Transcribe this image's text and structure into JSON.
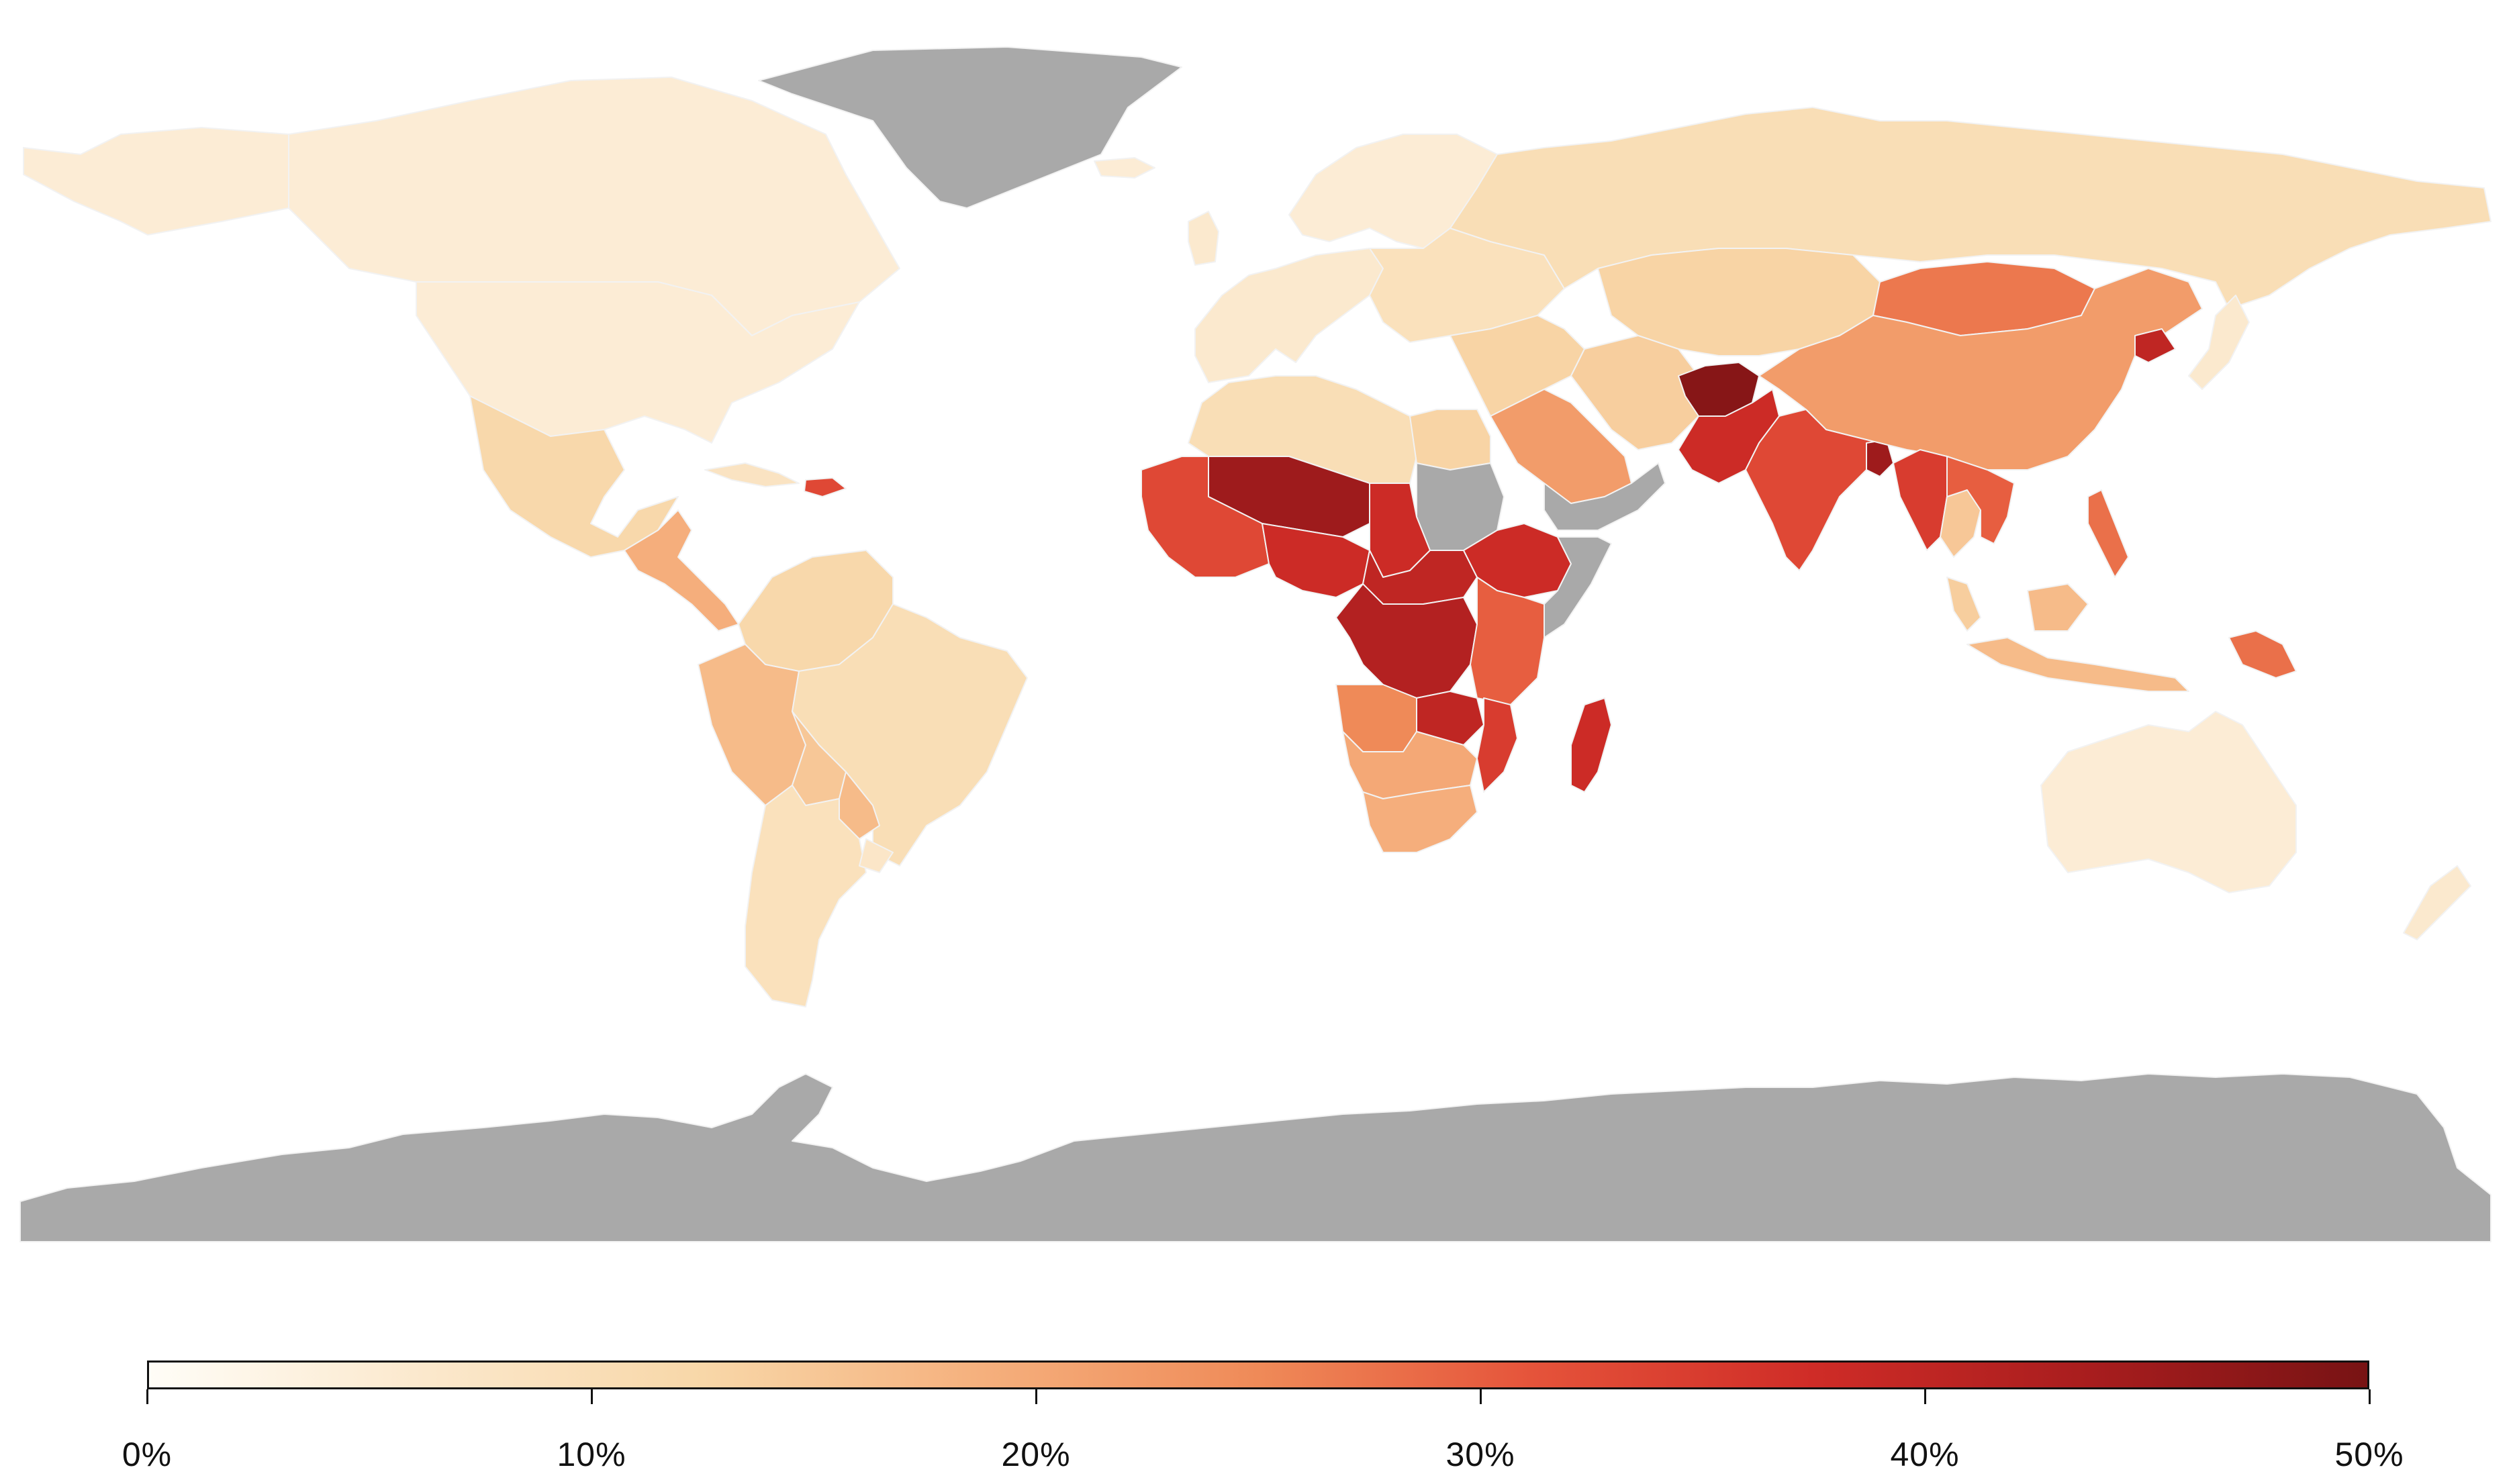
{
  "map": {
    "no_data_color": "#a9a9a9",
    "palette": [
      "#fffdf7",
      "#fbe8cc",
      "#f8d7a8",
      "#f5b07d",
      "#ef8a58",
      "#e5533a",
      "#cf2c27",
      "#a81d1e",
      "#781314"
    ],
    "regions": [
      {
        "id": "greenland",
        "value": null
      },
      {
        "id": "antarctica",
        "value": null
      },
      {
        "id": "canada",
        "value": 5
      },
      {
        "id": "usa",
        "value": 5
      },
      {
        "id": "alaska",
        "value": 5
      },
      {
        "id": "mexico",
        "value": 12
      },
      {
        "id": "central-america",
        "value": 19
      },
      {
        "id": "haiti",
        "value": 33
      },
      {
        "id": "cuba",
        "value": 8
      },
      {
        "id": "colombia-venezuela",
        "value": 12
      },
      {
        "id": "peru",
        "value": 17
      },
      {
        "id": "brazil",
        "value": 10
      },
      {
        "id": "bolivia",
        "value": 15
      },
      {
        "id": "paraguay",
        "value": 17
      },
      {
        "id": "argentina-chile",
        "value": 9
      },
      {
        "id": "uruguay",
        "value": 7
      },
      {
        "id": "western-europe",
        "value": 6
      },
      {
        "id": "scandinavia",
        "value": 5
      },
      {
        "id": "uk",
        "value": 6
      },
      {
        "id": "iceland",
        "value": 5
      },
      {
        "id": "eastern-europe",
        "value": 9
      },
      {
        "id": "russia",
        "value": 10
      },
      {
        "id": "kazakhstan-central-asia",
        "value": 13
      },
      {
        "id": "turkey-middle-east",
        "value": 13
      },
      {
        "id": "iran",
        "value": 14
      },
      {
        "id": "saudi-arabia",
        "value": 22
      },
      {
        "id": "yemen-oman",
        "value": null
      },
      {
        "id": "afghanistan",
        "value": 48
      },
      {
        "id": "pakistan",
        "value": 38
      },
      {
        "id": "india",
        "value": 33
      },
      {
        "id": "bangladesh",
        "value": 45
      },
      {
        "id": "china",
        "value": 22
      },
      {
        "id": "mongolia",
        "value": 27
      },
      {
        "id": "korea-north",
        "value": 40
      },
      {
        "id": "japan",
        "value": 6
      },
      {
        "id": "myanmar",
        "value": 35
      },
      {
        "id": "thailand",
        "value": 15
      },
      {
        "id": "vietnam-laos",
        "value": 30
      },
      {
        "id": "malaysia",
        "value": 14
      },
      {
        "id": "indonesia",
        "value": 17
      },
      {
        "id": "philippines",
        "value": 28
      },
      {
        "id": "papua-new-guinea",
        "value": 28
      },
      {
        "id": "australia",
        "value": 5
      },
      {
        "id": "new-zealand",
        "value": 6
      },
      {
        "id": "north-africa",
        "value": 10
      },
      {
        "id": "egypt",
        "value": 13
      },
      {
        "id": "sudan",
        "value": null
      },
      {
        "id": "west-africa",
        "value": 33
      },
      {
        "id": "sahel-niger",
        "value": 45
      },
      {
        "id": "chad",
        "value": 38
      },
      {
        "id": "nigeria",
        "value": 38
      },
      {
        "id": "central-african-rep",
        "value": 40
      },
      {
        "id": "drc",
        "value": 42
      },
      {
        "id": "ethiopia",
        "value": 38
      },
      {
        "id": "somalia",
        "value": null
      },
      {
        "id": "kenya-tanzania",
        "value": 30
      },
      {
        "id": "angola",
        "value": 25
      },
      {
        "id": "zambia",
        "value": 40
      },
      {
        "id": "mozambique",
        "value": 35
      },
      {
        "id": "namibia-botswana",
        "value": 20
      },
      {
        "id": "south-africa",
        "value": 19
      },
      {
        "id": "madagascar",
        "value": 38
      }
    ]
  },
  "legend": {
    "min": 0,
    "max": 50,
    "ticks": [
      {
        "value": 0,
        "label": "0%"
      },
      {
        "value": 10,
        "label": "10%"
      },
      {
        "value": 20,
        "label": "20%"
      },
      {
        "value": 30,
        "label": "30%"
      },
      {
        "value": 40,
        "label": "40%"
      },
      {
        "value": 50,
        "label": "50%"
      }
    ]
  }
}
